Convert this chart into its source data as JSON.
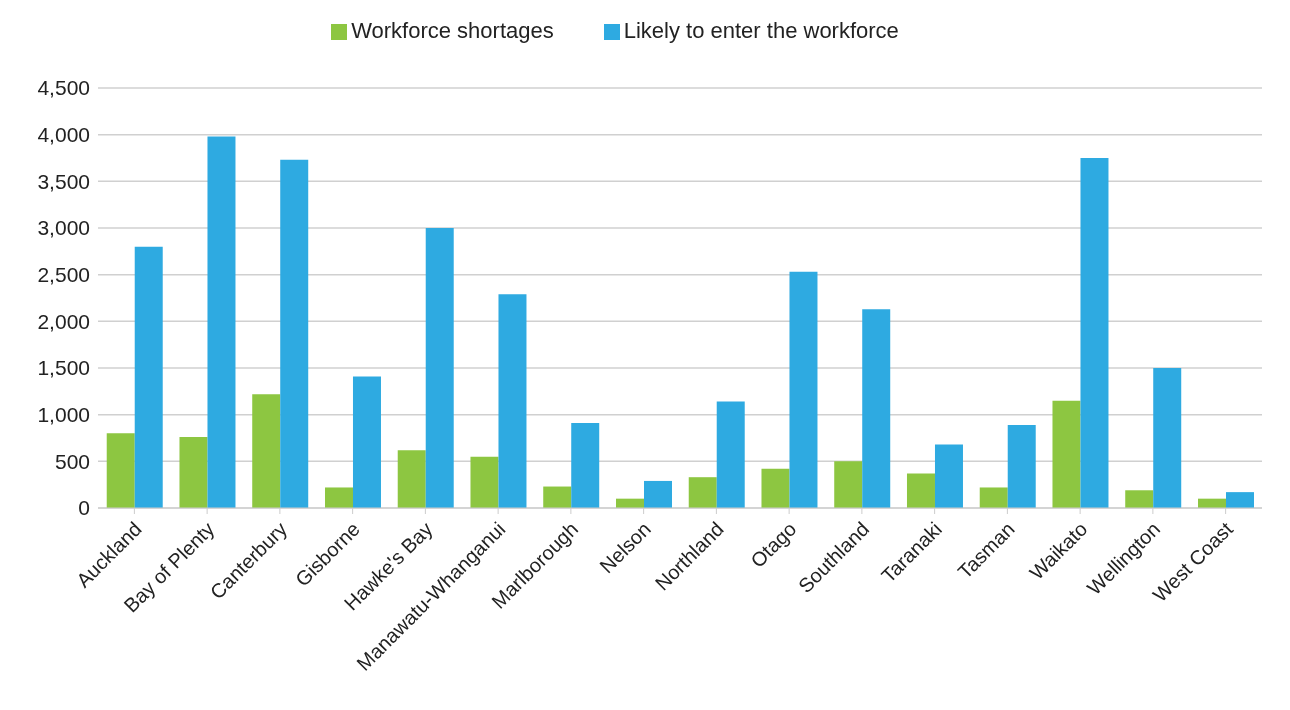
{
  "chart_data": {
    "type": "bar",
    "categories": [
      "Auckland",
      "Bay of Plenty",
      "Canterbury",
      "Gisborne",
      "Hawke's Bay",
      "Manawatu-Whanganui",
      "Marlborough",
      "Nelson",
      "Northland",
      "Otago",
      "Southland",
      "Taranaki",
      "Tasman",
      "Waikato",
      "Wellington",
      "West Coast"
    ],
    "series": [
      {
        "name": "Workforce shortages",
        "color": "#8dc641",
        "values": [
          800,
          760,
          1220,
          220,
          620,
          550,
          230,
          100,
          330,
          420,
          500,
          370,
          220,
          1150,
          190,
          100
        ]
      },
      {
        "name": "Likely to enter the workforce",
        "color": "#2eaae1",
        "values": [
          2800,
          3980,
          3730,
          1410,
          3000,
          2290,
          910,
          290,
          1140,
          2530,
          2130,
          680,
          890,
          3750,
          1500,
          170
        ]
      }
    ],
    "ylim": [
      0,
      4500
    ],
    "yticks": [
      0,
      500,
      {
        "value": 1000,
        "label": "1,000"
      },
      {
        "value": 1500,
        "label": "1,500"
      },
      {
        "value": 2000,
        "label": "2,000"
      },
      {
        "value": 2500,
        "label": "2,500"
      },
      {
        "value": 3000,
        "label": "3,000"
      },
      {
        "value": 3500,
        "label": "3,500"
      },
      {
        "value": 4000,
        "label": "4,000"
      },
      {
        "value": 4500,
        "label": "4,500"
      }
    ],
    "grid": "y",
    "legend": "top"
  }
}
